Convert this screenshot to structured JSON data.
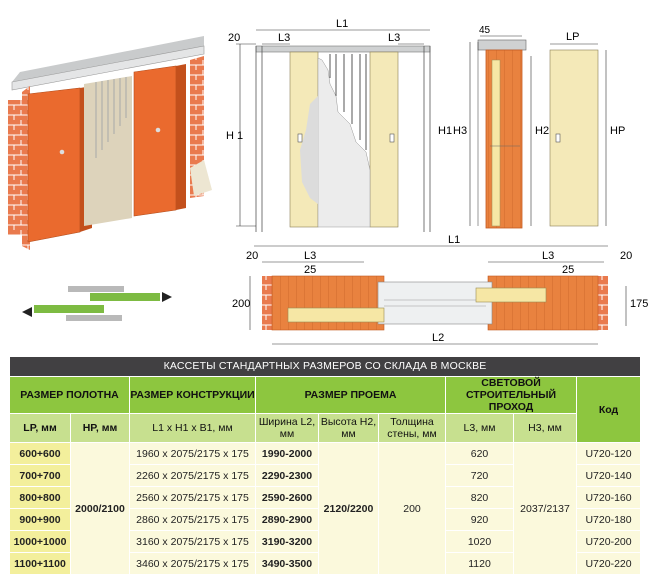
{
  "diagram": {
    "labels": {
      "l1": "L1",
      "l2": "L2",
      "l3": "L3",
      "h1": "H 1",
      "h1b": "H1",
      "h2": "H2",
      "h3": "H3",
      "hp": "HP",
      "lp": "LP",
      "d20": "20",
      "d25": "25",
      "d45": "45",
      "d200": "200",
      "d175": "175"
    }
  },
  "table": {
    "title": "КАССЕТЫ СТАНДАРТНЫХ РАЗМЕРОВ СО СКЛАДА В МОСКВЕ",
    "groups": {
      "panel": "РАЗМЕР ПОЛОТНА",
      "construction": "РАЗМЕР КОНСТРУКЦИИ",
      "opening": "РАЗМЕР ПРОЕМА",
      "passage": "СВЕТОВОЙ СТРОИТЕЛЬНЫЙ ПРОХОД",
      "code": "Код"
    },
    "subheaders": {
      "lp": "LP, мм",
      "hp": "HP, мм",
      "dims": "L1 x H1 x B1, мм",
      "width": "Ширина L2, мм",
      "height": "Высота H2, мм",
      "wall": "Толщина стены, мм",
      "l3": "L3, мм",
      "h3": "H3, мм"
    },
    "hp_value": "2000/2100",
    "h2_value": "2120/2200",
    "wall_value": "200",
    "h3_value": "2037/2137",
    "rows": [
      {
        "lp": "600+600",
        "dims": "1960 x 2075/2175 x 175",
        "l2": "1990-2000",
        "l3": "620",
        "code": "U720-120"
      },
      {
        "lp": "700+700",
        "dims": "2260 x 2075/2175 x 175",
        "l2": "2290-2300",
        "l3": "720",
        "code": "U720-140"
      },
      {
        "lp": "800+800",
        "dims": "2560 x 2075/2175 x 175",
        "l2": "2590-2600",
        "l3": "820",
        "code": "U720-160"
      },
      {
        "lp": "900+900",
        "dims": "2860 x 2075/2175 x 175",
        "l2": "2890-2900",
        "l3": "920",
        "code": "U720-180"
      },
      {
        "lp": "1000+1000",
        "dims": "3160 x 2075/2175 x 175",
        "l2": "3190-3200",
        "l3": "1020",
        "code": "U720-200"
      },
      {
        "lp": "1100+1100",
        "dims": "3460 x 2075/2175 x 175",
        "l2": "3490-3500",
        "l3": "1120",
        "code": "U720-220"
      }
    ]
  }
}
